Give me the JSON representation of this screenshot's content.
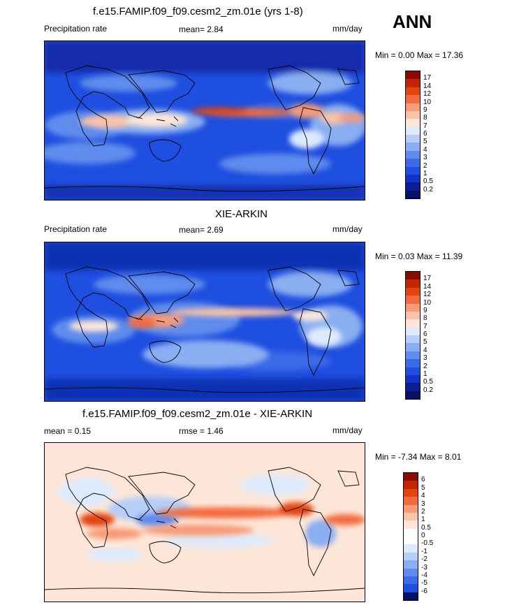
{
  "season": "ANN",
  "panels": [
    {
      "title": "f.e15.FAMIP.f09_f09.cesm2_zm.01e (yrs 1-8)",
      "left_label": "Precipitation rate",
      "center_label": "mean=   2.84",
      "right_label": "mm/day",
      "minmax": "Min =   0.00 Max =  17.36"
    },
    {
      "title": "XIE-ARKIN",
      "left_label": "Precipitation rate",
      "center_label": "mean=   2.69",
      "right_label": "mm/day",
      "minmax": "Min =   0.03 Max =  11.39"
    },
    {
      "title": "f.e15.FAMIP.f09_f09.cesm2_zm.01e - XIE-ARKIN",
      "left_label": "mean =   0.15",
      "center_label": "rmse =   1.46",
      "right_label": "mm/day",
      "minmax": "Min =  -7.34 Max =   8.01"
    }
  ],
  "colorbars": {
    "precip": {
      "labels": [
        "17",
        "14",
        "12",
        "10",
        "9",
        "8",
        "7",
        "6",
        "5",
        "4",
        "3",
        "2",
        "1",
        "0.5",
        "0.2"
      ],
      "colors": [
        "#8b0a00",
        "#c42400",
        "#e4450e",
        "#f26a3d",
        "#f79a76",
        "#fac2a6",
        "#fde6d8",
        "#ddeafc",
        "#b5cdf8",
        "#8aaef2",
        "#5f8ced",
        "#3b6be6",
        "#1f4fe0",
        "#1035c8",
        "#0a1d96",
        "#06126a"
      ]
    },
    "diff": {
      "labels": [
        "6",
        "5",
        "4",
        "3",
        "2",
        "1",
        "0.5",
        "0",
        "-0.5",
        "-1",
        "-2",
        "-3",
        "-4",
        "-5",
        "-6"
      ],
      "colors": [
        "#8b0a00",
        "#c42400",
        "#e4450e",
        "#f26a3d",
        "#f79a76",
        "#fac2a6",
        "#fde6d8",
        "#ffffff",
        "#ffffff",
        "#ddeafc",
        "#b5cdf8",
        "#8aaef2",
        "#5f8ced",
        "#3b6be6",
        "#1f4fe0",
        "#06126a"
      ]
    }
  }
}
